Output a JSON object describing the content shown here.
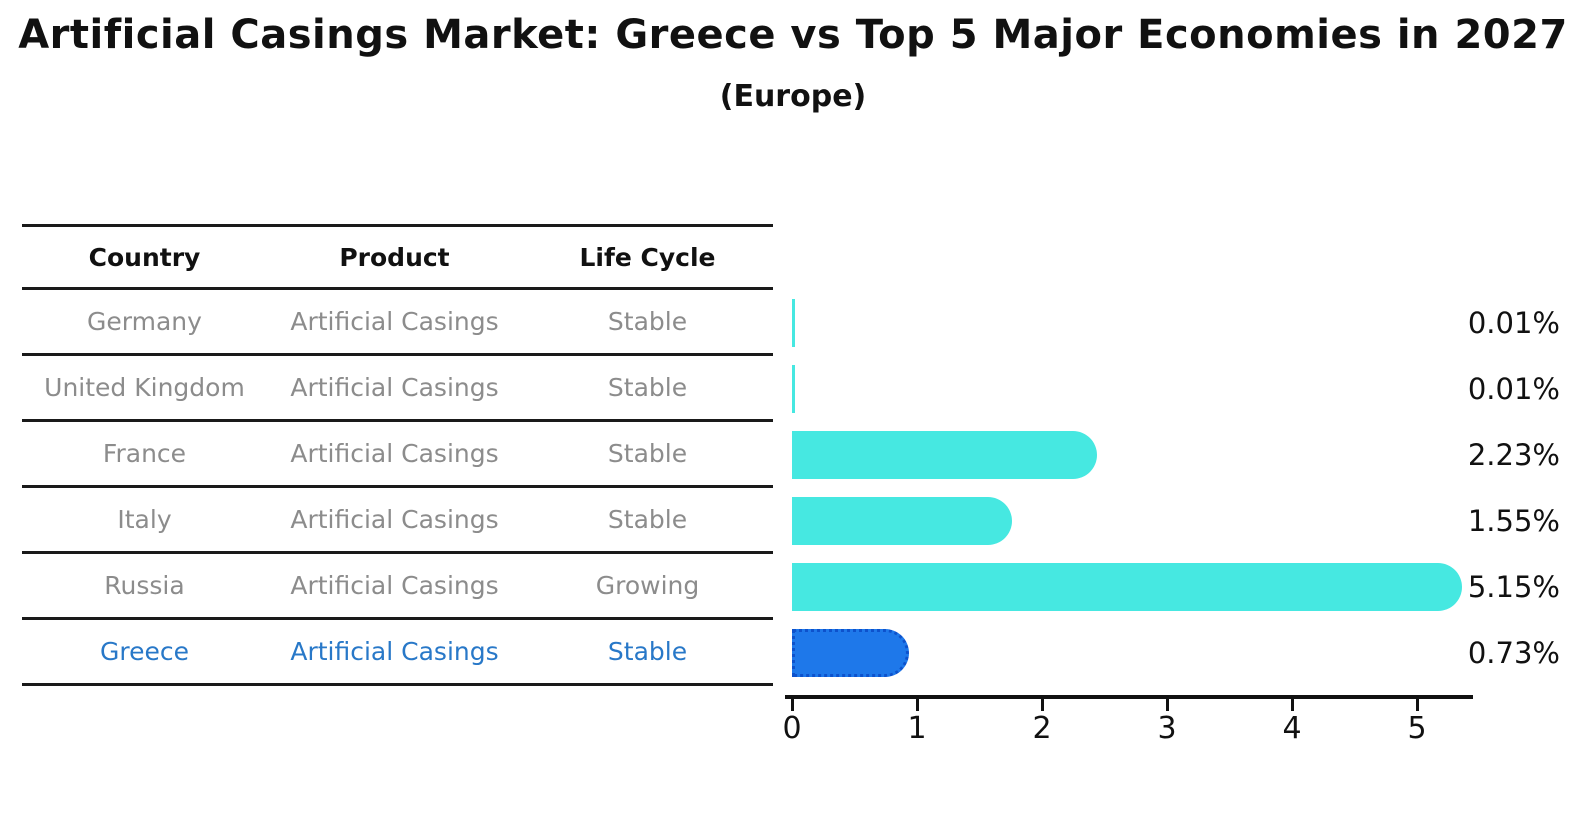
{
  "title": "Artificial Casings Market: Greece vs Top 5 Major Economies in 2027",
  "subtitle": "(Europe)",
  "table": {
    "headers": [
      "Country",
      "Product",
      "Life Cycle"
    ],
    "rows": [
      {
        "country": "Germany",
        "product": "Artificial Casings",
        "life_cycle": "Stable",
        "highlight": false
      },
      {
        "country": "United Kingdom",
        "product": "Artificial Casings",
        "life_cycle": "Stable",
        "highlight": false
      },
      {
        "country": "France",
        "product": "Artificial Casings",
        "life_cycle": "Stable",
        "highlight": false
      },
      {
        "country": "Italy",
        "product": "Artificial Casings",
        "life_cycle": "Stable",
        "highlight": false
      },
      {
        "country": "Russia",
        "product": "Artificial Casings",
        "life_cycle": "Growing",
        "highlight": false
      },
      {
        "country": "Greece",
        "product": "Artificial Casings",
        "life_cycle": "Stable",
        "highlight": true
      }
    ]
  },
  "chart_data": {
    "type": "bar",
    "orientation": "horizontal",
    "title": "Artificial Casings Market: Greece vs Top 5 Major Economies in 2027 (Europe)",
    "categories": [
      "Germany",
      "United Kingdom",
      "France",
      "Italy",
      "Russia",
      "Greece"
    ],
    "values": [
      0.01,
      0.01,
      2.23,
      1.55,
      5.15,
      0.73
    ],
    "value_labels": [
      "0.01%",
      "0.01%",
      "2.23%",
      "1.55%",
      "5.15%",
      "0.73%"
    ],
    "xlabel": "",
    "ylabel": "",
    "xlim": [
      0,
      5.5
    ],
    "x_ticks": [
      "0",
      "1",
      "2",
      "3",
      "4",
      "5"
    ],
    "grid": false,
    "legend": "none",
    "highlight_index": 5
  },
  "colors": {
    "bar_color": "#46e8e1",
    "highlight_bar_color": "#1e78ea",
    "highlight_bar_border": "#0d52cc",
    "highlight_text": "#2878c8",
    "table_text": "#8c8c8c",
    "axis_text": "#111111"
  }
}
